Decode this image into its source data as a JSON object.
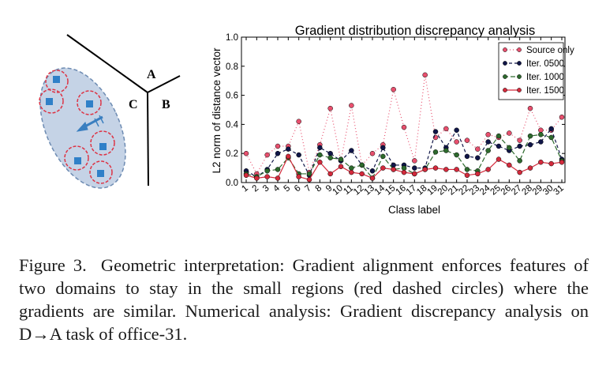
{
  "diagram": {
    "labels": [
      "A",
      "B",
      "C"
    ],
    "colors": {
      "cluster_fill": "#c5d3e6",
      "cluster_stroke": "#6d8bb2",
      "circle": "#dd3344",
      "point": "#2f80c8",
      "arrow": "#3a7fc0"
    }
  },
  "chart_data": {
    "type": "line",
    "title": "Gradient distribution discrepancy analysis",
    "xlabel": "Class label",
    "ylabel": "L2 norm of distance vector",
    "ylim": [
      0,
      1.0
    ],
    "yticks": [
      "0.0",
      "0.2",
      "0.4",
      "0.6",
      "0.8",
      "1.0"
    ],
    "categories": [
      "1",
      "2",
      "3",
      "4",
      "5",
      "6",
      "7",
      "8",
      "9",
      "10",
      "11",
      "12",
      "13",
      "14",
      "15",
      "16",
      "17",
      "18",
      "19",
      "20",
      "21",
      "22",
      "23",
      "24",
      "25",
      "26",
      "27",
      "28",
      "29",
      "30",
      "31"
    ],
    "legend_position": "top-right",
    "series": [
      {
        "name": "Source only",
        "color": "#e8506e",
        "dash": "1,3",
        "values": [
          0.2,
          0.06,
          0.19,
          0.25,
          0.25,
          0.42,
          0.07,
          0.26,
          0.51,
          0.15,
          0.53,
          0.12,
          0.2,
          0.26,
          0.64,
          0.38,
          0.15,
          0.74,
          0.31,
          0.37,
          0.28,
          0.29,
          0.23,
          0.33,
          0.31,
          0.34,
          0.29,
          0.51,
          0.36,
          0.36,
          0.45
        ]
      },
      {
        "name": "Iter. 0500",
        "color": "#101648",
        "dash": "4,3",
        "values": [
          0.08,
          0.04,
          0.09,
          0.2,
          0.23,
          0.19,
          0.05,
          0.24,
          0.2,
          0.15,
          0.22,
          0.12,
          0.08,
          0.24,
          0.12,
          0.12,
          0.1,
          0.1,
          0.35,
          0.24,
          0.36,
          0.18,
          0.17,
          0.28,
          0.25,
          0.22,
          0.25,
          0.26,
          0.28,
          0.37,
          0.16
        ]
      },
      {
        "name": "Iter. 1000",
        "color": "#2d6a2d",
        "dash": "6,3",
        "values": [
          0.06,
          0.04,
          0.08,
          0.09,
          0.17,
          0.06,
          0.06,
          0.19,
          0.17,
          0.16,
          0.1,
          0.12,
          0.03,
          0.18,
          0.09,
          0.1,
          0.06,
          0.09,
          0.21,
          0.22,
          0.19,
          0.09,
          0.08,
          0.22,
          0.32,
          0.24,
          0.15,
          0.32,
          0.33,
          0.31,
          0.15
        ]
      },
      {
        "name": "Iter. 1500",
        "color": "#d42a3c",
        "dash": "",
        "values": [
          0.05,
          0.03,
          0.04,
          0.03,
          0.18,
          0.04,
          0.02,
          0.14,
          0.06,
          0.11,
          0.07,
          0.06,
          0.03,
          0.1,
          0.09,
          0.07,
          0.06,
          0.09,
          0.1,
          0.09,
          0.09,
          0.05,
          0.06,
          0.09,
          0.16,
          0.12,
          0.07,
          0.1,
          0.14,
          0.13,
          0.14
        ]
      }
    ]
  },
  "caption": {
    "figure": "Figure 3.",
    "text": "Geometric interpretation: Gradient alignment enforces features of two domains to stay in the small regions (red dashed circles) where the gradients are similar. Numerical analysis: Gradient discrepancy analysis on D→A task of office-31."
  }
}
